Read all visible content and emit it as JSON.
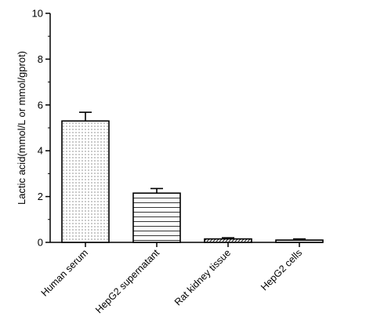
{
  "chart_data": {
    "type": "bar",
    "categories": [
      "Human serum",
      "HepG2 supernatant",
      "Rat kidney tissue",
      "HepG2 cells"
    ],
    "values": [
      5.3,
      2.15,
      0.15,
      0.1
    ],
    "errors": [
      0.38,
      0.2,
      0.05,
      0.05
    ],
    "patterns": [
      "dots",
      "horizontal-lines",
      "diagonal-hatch",
      "dense-horizontal"
    ],
    "xlabel": "",
    "ylabel": "Lactic acid(mmol/L or mmol/gprot)",
    "ylim": [
      0,
      10
    ],
    "yticks": [
      "0",
      "2",
      "4",
      "6",
      "8",
      "10"
    ],
    "grid": false,
    "legend": "none",
    "colors": {
      "bar_stroke": "#000000",
      "axis": "#000000",
      "pattern": "#000000"
    }
  }
}
